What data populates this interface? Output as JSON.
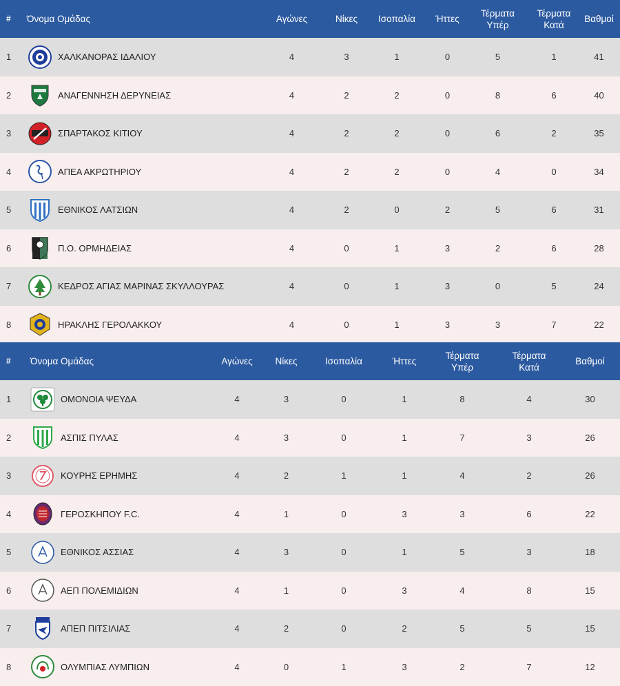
{
  "tables": [
    {
      "headers": {
        "rank": "#",
        "team": "Όνομα Ομάδας",
        "played": "Αγώνες",
        "wins": "Νίκες",
        "draws": "Ισοπαλία",
        "losses": "Ήττες",
        "gf_line1": "Τέρματα",
        "gf_line2": "Υπέρ",
        "ga_line1": "Τέρματα",
        "ga_line2": "Κατά",
        "points": "Βαθμοί"
      },
      "rows": [
        {
          "rank": "1",
          "team": "ΧΑΛΚΑΝΟΡΑΣ ΙΔΑΛΙΟΥ",
          "played": "4",
          "wins": "3",
          "draws": "1",
          "losses": "0",
          "gf": "5",
          "ga": "1",
          "points": "41",
          "crest_icon": "chalkanoras-crest-icon",
          "crest_color": "#1f3e9c"
        },
        {
          "rank": "2",
          "team": "ΑΝΑΓΕΝΝΗΣΗ ΔΕΡΥΝΕΙΑΣ",
          "played": "4",
          "wins": "2",
          "draws": "2",
          "losses": "0",
          "gf": "8",
          "ga": "6",
          "points": "40",
          "crest_icon": "anagennisi-crest-icon",
          "crest_color": "#1c7a3e"
        },
        {
          "rank": "3",
          "team": "ΣΠΑΡΤΑΚΟΣ ΚΙΤΙΟΥ",
          "played": "4",
          "wins": "2",
          "draws": "2",
          "losses": "0",
          "gf": "6",
          "ga": "2",
          "points": "35",
          "crest_icon": "spartakos-crest-icon",
          "crest_color": "#d22027"
        },
        {
          "rank": "4",
          "team": "ΑΠΕΑ ΑΚΡΩΤΗΡΙΟΥ",
          "played": "4",
          "wins": "2",
          "draws": "2",
          "losses": "0",
          "gf": "4",
          "ga": "0",
          "points": "34",
          "crest_icon": "apea-crest-icon",
          "crest_color": "#2a55a8"
        },
        {
          "rank": "5",
          "team": "ΕΘΝΙΚΟΣ ΛΑΤΣΙΩΝ",
          "played": "4",
          "wins": "2",
          "draws": "0",
          "losses": "2",
          "gf": "5",
          "ga": "6",
          "points": "31",
          "crest_icon": "ethnikos-latsion-crest-icon",
          "crest_color": "#2e6fc2"
        },
        {
          "rank": "6",
          "team": "Π.Ο. ΟΡΜΗΔΕΙΑΣ",
          "played": "4",
          "wins": "0",
          "draws": "1",
          "losses": "3",
          "gf": "2",
          "ga": "6",
          "points": "28",
          "crest_icon": "ormideias-crest-icon",
          "crest_color": "#1f5e3a"
        },
        {
          "rank": "7",
          "team": "ΚΕΔΡΟΣ ΑΓΙΑΣ ΜΑΡΙΝΑΣ ΣΚΥΛΛΟΥΡΑΣ",
          "played": "4",
          "wins": "0",
          "draws": "1",
          "losses": "3",
          "gf": "0",
          "ga": "5",
          "points": "24",
          "crest_icon": "kedros-crest-icon",
          "crest_color": "#2f8a3b"
        },
        {
          "rank": "8",
          "team": "ΗΡΑΚΛΗΣ ΓΕΡΟΛΑΚΚΟΥ",
          "played": "4",
          "wins": "0",
          "draws": "1",
          "losses": "3",
          "gf": "3",
          "ga": "7",
          "points": "22",
          "crest_icon": "iraklis-crest-icon",
          "crest_color": "#e3b31c"
        }
      ]
    },
    {
      "headers": {
        "rank": "#",
        "team": "Όνομα Ομάδας",
        "played": "Αγώνες",
        "wins": "Νίκες",
        "draws": "Ισοπαλία",
        "losses": "Ήττες",
        "gf_line1": "Τέρματα",
        "gf_line2": "Υπέρ",
        "ga_line1": "Τέρματα",
        "ga_line2": "Κατά",
        "points": "Βαθμοί"
      },
      "rows": [
        {
          "rank": "1",
          "team": "ΟΜΟΝΟΙΑ ΨΕΥΔΑ",
          "played": "4",
          "wins": "3",
          "draws": "0",
          "losses": "1",
          "gf": "8",
          "ga": "4",
          "points": "30",
          "crest_icon": "omonoia-crest-icon",
          "crest_color": "#1f8a3c"
        },
        {
          "rank": "2",
          "team": "ΑΣΠΙΣ ΠΥΛΑΣ",
          "played": "4",
          "wins": "3",
          "draws": "0",
          "losses": "1",
          "gf": "7",
          "ga": "3",
          "points": "26",
          "crest_icon": "aspis-crest-icon",
          "crest_color": "#2fa84a"
        },
        {
          "rank": "3",
          "team": "ΚΟΥΡΗΣ ΕΡΗΜΗΣ",
          "played": "4",
          "wins": "2",
          "draws": "1",
          "losses": "1",
          "gf": "4",
          "ga": "2",
          "points": "26",
          "crest_icon": "kouris-crest-icon",
          "crest_color": "#e05a6a"
        },
        {
          "rank": "4",
          "team": "ΓΕΡΟΣΚΗΠΟΥ F.C.",
          "played": "4",
          "wins": "1",
          "draws": "0",
          "losses": "3",
          "gf": "3",
          "ga": "6",
          "points": "22",
          "crest_icon": "geroskipou-crest-icon",
          "crest_color": "#6a2a6e"
        },
        {
          "rank": "5",
          "team": "ΕΘΝΙΚΟΣ ΑΣΣΙΑΣ",
          "played": "4",
          "wins": "3",
          "draws": "0",
          "losses": "1",
          "gf": "5",
          "ga": "3",
          "points": "18",
          "crest_icon": "ethnikos-assias-crest-icon",
          "crest_color": "#2a55a8"
        },
        {
          "rank": "6",
          "team": "ΑΕΠ ΠΟΛΕΜΙΔΙΩΝ",
          "played": "4",
          "wins": "1",
          "draws": "0",
          "losses": "3",
          "gf": "4",
          "ga": "8",
          "points": "15",
          "crest_icon": "aep-crest-icon",
          "crest_color": "#555555"
        },
        {
          "rank": "7",
          "team": "ΑΠΕΠ ΠΙΤΣΙΛΙΑΣ",
          "played": "4",
          "wins": "2",
          "draws": "0",
          "losses": "2",
          "gf": "5",
          "ga": "5",
          "points": "15",
          "crest_icon": "apep-crest-icon",
          "crest_color": "#1f3e9c"
        },
        {
          "rank": "8",
          "team": "ΟΛΥΜΠΙΑΣ ΛΥΜΠΙΩΝ",
          "played": "4",
          "wins": "0",
          "draws": "1",
          "losses": "3",
          "gf": "2",
          "ga": "7",
          "points": "12",
          "crest_icon": "olympias-crest-icon",
          "crest_color": "#2f8a3b"
        }
      ]
    }
  ],
  "colors": {
    "header_bg": "#2c5aa0",
    "row_odd": "#dedede",
    "row_even": "#f8eeee"
  }
}
